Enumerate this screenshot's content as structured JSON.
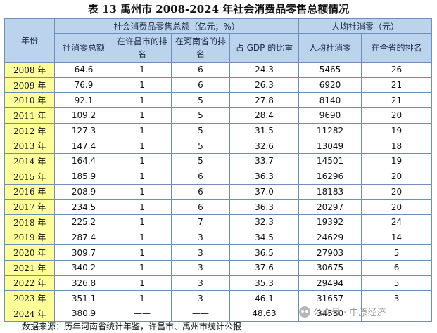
{
  "title": "表 13 禹州市 2008-2024 年社会消费品零售总额情况",
  "header": {
    "year": "年份",
    "group_retail": "社会消费品零售总额（亿元；%）",
    "group_percapita": "人均社消零（元）",
    "col_total": "社消零总额",
    "col_rank_xuchang": "在许昌市的排名",
    "col_rank_henan": "在河南省的排名",
    "col_gdp_share": "占 GDP 的比重",
    "col_percapita": "人均社消零",
    "col_percapita_rank": "在全省的排名"
  },
  "rows": [
    {
      "year": "2008 年",
      "total": "64.6",
      "rank_xc": "1",
      "rank_hn": "6",
      "gdp": "24.3",
      "pc": "5465",
      "pc_rank": "26"
    },
    {
      "year": "2009 年",
      "total": "76.9",
      "rank_xc": "1",
      "rank_hn": "6",
      "gdp": "26.3",
      "pc": "6920",
      "pc_rank": "21"
    },
    {
      "year": "2010 年",
      "total": "92.1",
      "rank_xc": "1",
      "rank_hn": "5",
      "gdp": "27.8",
      "pc": "8140",
      "pc_rank": "21"
    },
    {
      "year": "2011 年",
      "total": "109.2",
      "rank_xc": "1",
      "rank_hn": "5",
      "gdp": "28.4",
      "pc": "9690",
      "pc_rank": "20"
    },
    {
      "year": "2012 年",
      "total": "127.3",
      "rank_xc": "1",
      "rank_hn": "5",
      "gdp": "31.5",
      "pc": "11282",
      "pc_rank": "19"
    },
    {
      "year": "2013 年",
      "total": "147.4",
      "rank_xc": "1",
      "rank_hn": "5",
      "gdp": "32.6",
      "pc": "13049",
      "pc_rank": "18"
    },
    {
      "year": "2014 年",
      "total": "164.4",
      "rank_xc": "1",
      "rank_hn": "5",
      "gdp": "33.7",
      "pc": "14501",
      "pc_rank": "19"
    },
    {
      "year": "2015 年",
      "total": "185.9",
      "rank_xc": "1",
      "rank_hn": "6",
      "gdp": "36.3",
      "pc": "16296",
      "pc_rank": "20"
    },
    {
      "year": "2016 年",
      "total": "208.9",
      "rank_xc": "1",
      "rank_hn": "6",
      "gdp": "37.0",
      "pc": "18183",
      "pc_rank": "20"
    },
    {
      "year": "2017 年",
      "total": "234.5",
      "rank_xc": "1",
      "rank_hn": "6",
      "gdp": "36.3",
      "pc": "20297",
      "pc_rank": "20"
    },
    {
      "year": "2018 年",
      "total": "225.2",
      "rank_xc": "1",
      "rank_hn": "7",
      "gdp": "32.3",
      "pc": "19392",
      "pc_rank": "24"
    },
    {
      "year": "2019 年",
      "total": "287.4",
      "rank_xc": "1",
      "rank_hn": "3",
      "gdp": "34.5",
      "pc": "24629",
      "pc_rank": "14"
    },
    {
      "year": "2020 年",
      "total": "309.7",
      "rank_xc": "1",
      "rank_hn": "3",
      "gdp": "36.5",
      "pc": "27903",
      "pc_rank": "5"
    },
    {
      "year": "2021 年",
      "total": "340.2",
      "rank_xc": "1",
      "rank_hn": "3",
      "gdp": "37.6",
      "pc": "30675",
      "pc_rank": "6"
    },
    {
      "year": "2022 年",
      "total": "326.8",
      "rank_xc": "1",
      "rank_hn": "3",
      "gdp": "35.3",
      "pc": "29494",
      "pc_rank": "5"
    },
    {
      "year": "2023 年",
      "total": "351.1",
      "rank_xc": "1",
      "rank_hn": "3",
      "gdp": "46.1",
      "pc": "31657",
      "pc_rank": "3"
    },
    {
      "year": "2024 年",
      "total": "380.9",
      "rank_xc": "——",
      "rank_hn": "——",
      "gdp": "48.63",
      "pc": "34550",
      "pc_rank": ""
    }
  ],
  "source": "数据来源：历年河南省统计年鉴，许昌市、禹州市统计公报",
  "watermark": "公众号 · 中原经济",
  "colors": {
    "header_bg": "#bcd3ee",
    "year_bg": "#ffff99",
    "border": "#6e8fb8"
  }
}
